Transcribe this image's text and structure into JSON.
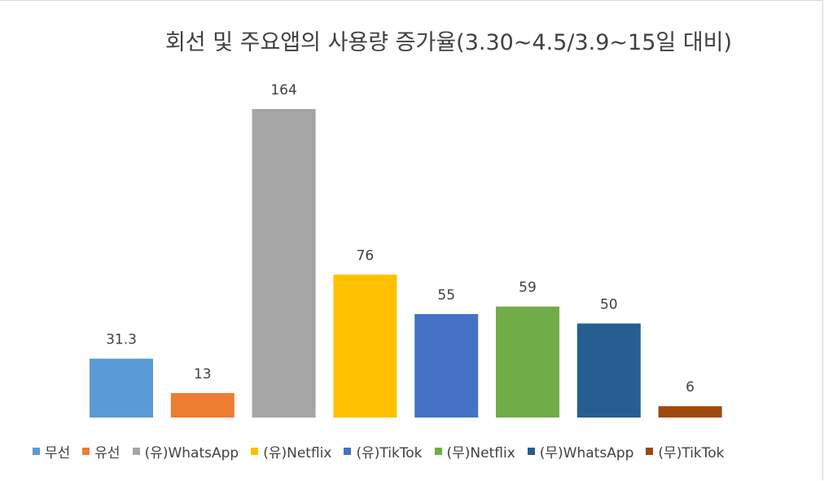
{
  "chart_data": {
    "type": "bar",
    "title": "회선 및 주요앱의 사용량 증가율(3.30~4.5/3.9~15일 대비)",
    "categories": [
      "무선",
      "유선",
      "(유)WhatsApp",
      "(유)Netflix",
      "(유)TikTok",
      "(무)Netflix",
      "(무)WhatsApp",
      "(무)TikTok"
    ],
    "values": [
      31.3,
      13,
      164,
      76,
      55,
      59,
      50,
      6
    ],
    "value_labels": [
      "31.3",
      "13",
      "164",
      "76",
      "55",
      "59",
      "50",
      "6"
    ],
    "colors": [
      "#5b9bd5",
      "#ed7d31",
      "#a5a5a5",
      "#ffc000",
      "#4472c4",
      "#70ad47",
      "#255e91",
      "#9e480e"
    ],
    "ylim": [
      0,
      164
    ],
    "grid": false,
    "legend_position": "bottom",
    "xlabel": "",
    "ylabel": ""
  }
}
